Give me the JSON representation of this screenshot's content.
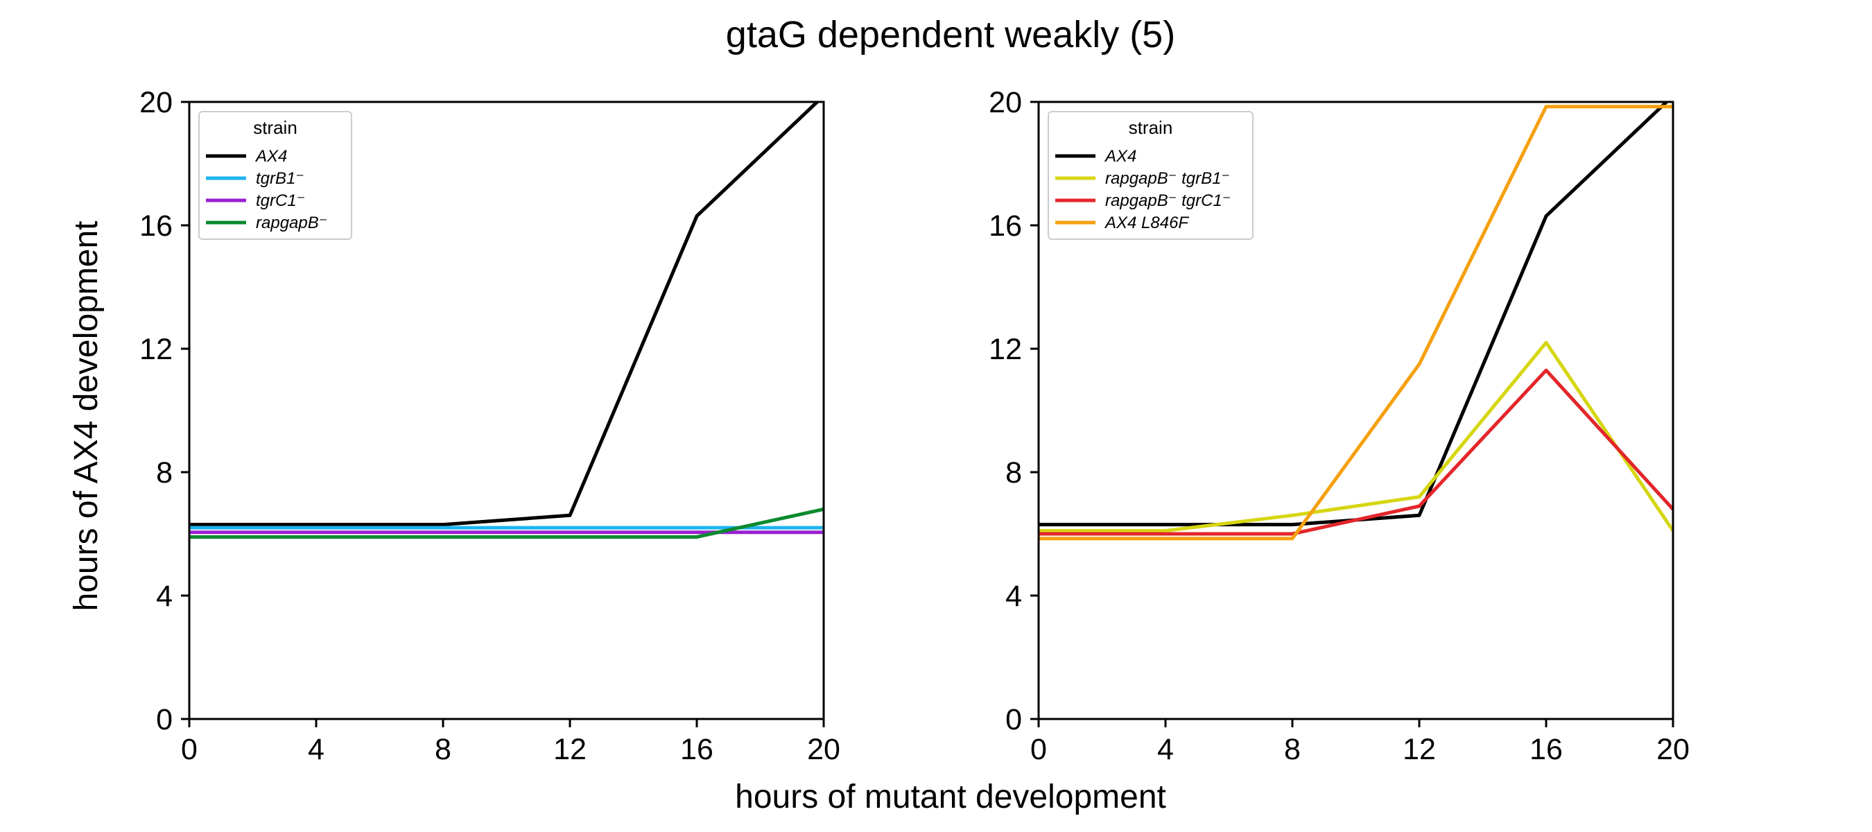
{
  "figure": {
    "title": "gtaG dependent weakly (5)",
    "xlabel": "hours of mutant development",
    "ylabel": "hours of AX4 development"
  },
  "chart_data": [
    {
      "type": "line",
      "xlim": [
        0,
        20
      ],
      "ylim": [
        0,
        20
      ],
      "xticks": [
        0,
        4,
        8,
        12,
        16,
        20
      ],
      "yticks": [
        0,
        4,
        8,
        12,
        16,
        20
      ],
      "grid": false,
      "legend": {
        "title": "strain",
        "placement": "top-left"
      },
      "x": [
        0,
        4,
        8,
        12,
        16,
        20
      ],
      "series": [
        {
          "name": "AX4",
          "color": "#000000",
          "values": [
            6.3,
            6.3,
            6.3,
            6.6,
            16.3,
            20.2
          ]
        },
        {
          "name": "tgrB1⁻",
          "color": "#1eb4ef",
          "values": [
            6.2,
            6.2,
            6.2,
            6.2,
            6.2,
            6.2
          ]
        },
        {
          "name": "tgrC1⁻",
          "color": "#9a1fd1",
          "values": [
            6.05,
            6.05,
            6.05,
            6.05,
            6.05,
            6.05
          ]
        },
        {
          "name": "rapgapB⁻",
          "color": "#0a8a2f",
          "values": [
            5.9,
            5.9,
            5.9,
            5.9,
            5.9,
            6.8
          ]
        }
      ]
    },
    {
      "type": "line",
      "xlim": [
        0,
        20
      ],
      "ylim": [
        0,
        20
      ],
      "xticks": [
        0,
        4,
        8,
        12,
        16,
        20
      ],
      "yticks": [
        0,
        4,
        8,
        12,
        16,
        20
      ],
      "grid": false,
      "legend": {
        "title": "strain",
        "placement": "top-left"
      },
      "x": [
        0,
        4,
        8,
        12,
        16,
        20
      ],
      "series": [
        {
          "name": "AX4",
          "color": "#000000",
          "values": [
            6.3,
            6.3,
            6.3,
            6.6,
            16.3,
            20.2
          ]
        },
        {
          "name": "rapgapB⁻ tgrB1⁻",
          "color": "#d6d612",
          "values": [
            6.1,
            6.1,
            6.6,
            7.2,
            12.2,
            6.1
          ]
        },
        {
          "name": "rapgapB⁻ tgrC1⁻",
          "color": "#e3262a",
          "values": [
            6.0,
            6.0,
            6.0,
            6.9,
            11.3,
            6.8
          ]
        },
        {
          "name": "AX4 L846F",
          "color": "#f5a00f",
          "values": [
            5.85,
            5.85,
            5.85,
            11.5,
            19.85,
            19.85
          ]
        }
      ]
    }
  ]
}
